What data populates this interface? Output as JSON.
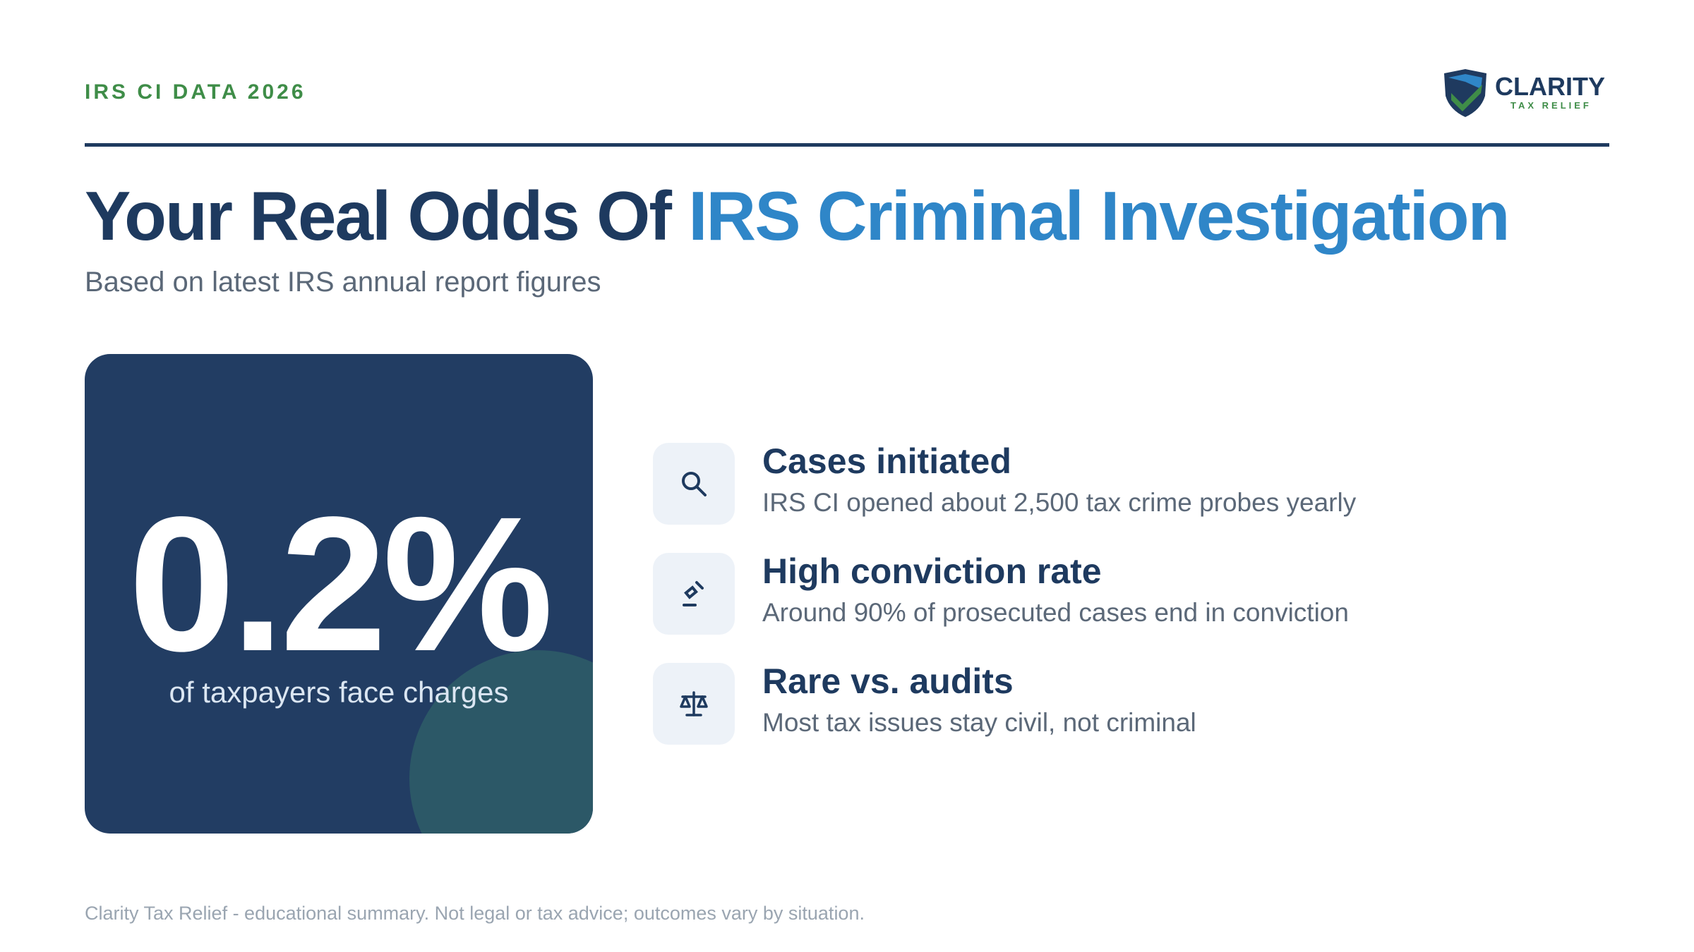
{
  "header": {
    "eyebrow": "IRS CI DATA 2026",
    "logo_name": "CLARITY",
    "logo_tagline": "TAX RELIEF"
  },
  "title": {
    "lead": "Your Real Odds Of",
    "highlight": "IRS Criminal Investigation"
  },
  "subtitle": "Based on latest IRS annual report figures",
  "stat": {
    "value": "0.2%",
    "caption": "of taxpayers face charges"
  },
  "items": [
    {
      "title": "Cases initiated",
      "text": "IRS CI opened about 2,500 tax crime probes yearly"
    },
    {
      "title": "High conviction rate",
      "text": "Around 90% of prosecuted cases end in conviction"
    },
    {
      "title": "Rare vs. audits",
      "text": "Most tax issues stay civil, not criminal"
    }
  ],
  "footer": "Clarity Tax Relief - educational summary. Not legal or tax advice; outcomes vary by situation."
}
